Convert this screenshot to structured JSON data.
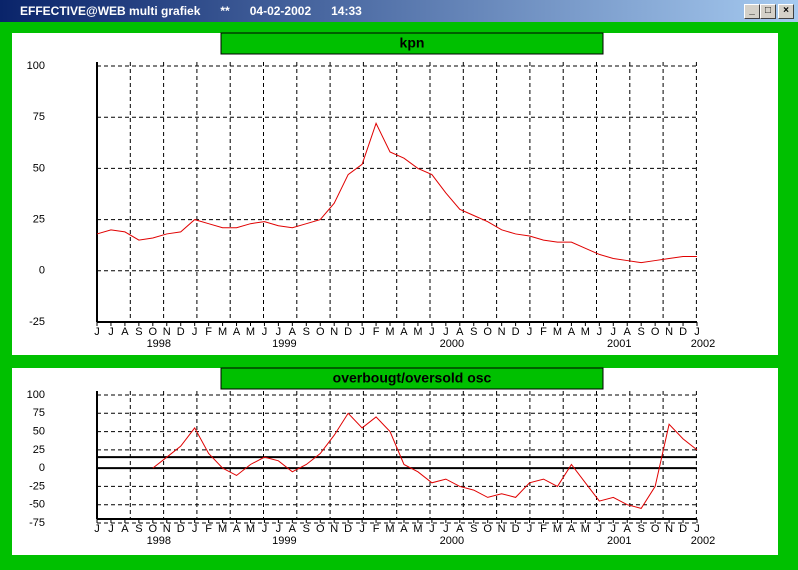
{
  "window": {
    "title": "EFFECTIVE@WEB multi grafiek      **      04-02-2002      14:33"
  },
  "chart_data": [
    {
      "type": "line",
      "title": "kpn",
      "categories": [
        "J",
        "J",
        "A",
        "S",
        "O",
        "N",
        "D",
        "J",
        "F",
        "M",
        "A",
        "M",
        "J",
        "J",
        "A",
        "S",
        "O",
        "N",
        "D",
        "J",
        "F",
        "M",
        "A",
        "M",
        "J",
        "J",
        "A",
        "S",
        "O",
        "N",
        "D",
        "J",
        "F",
        "M",
        "A",
        "M",
        "J",
        "J",
        "A",
        "S",
        "O",
        "N",
        "D",
        "J"
      ],
      "years": [
        null,
        null,
        null,
        null,
        "1998",
        null,
        null,
        null,
        null,
        null,
        null,
        null,
        null,
        "1999",
        null,
        null,
        null,
        null,
        null,
        null,
        null,
        null,
        null,
        null,
        null,
        "2000",
        null,
        null,
        null,
        null,
        null,
        null,
        null,
        null,
        null,
        null,
        null,
        "2001",
        null,
        null,
        null,
        null,
        null,
        "2002"
      ],
      "series": [
        {
          "color": "#e00000",
          "values": [
            18,
            20,
            19,
            15,
            16,
            18,
            19,
            25,
            23,
            21,
            21,
            23,
            24,
            22,
            21,
            23,
            25,
            33,
            47,
            52,
            72,
            58,
            55,
            50,
            47,
            38,
            30,
            27,
            24,
            20,
            18,
            17,
            15,
            14,
            14,
            11,
            8,
            6,
            5,
            4,
            5,
            6,
            7,
            7
          ]
        }
      ],
      "ylim": [
        -25,
        100
      ],
      "yticks": [
        -25,
        0,
        25,
        50,
        75,
        100
      ],
      "grid": true
    },
    {
      "type": "line",
      "title": "overbougt/oversold osc",
      "categories": [
        "J",
        "J",
        "A",
        "S",
        "O",
        "N",
        "D",
        "J",
        "F",
        "M",
        "A",
        "M",
        "J",
        "J",
        "A",
        "S",
        "O",
        "N",
        "D",
        "J",
        "F",
        "M",
        "A",
        "M",
        "J",
        "J",
        "A",
        "S",
        "O",
        "N",
        "D",
        "J",
        "F",
        "M",
        "A",
        "M",
        "J",
        "J",
        "A",
        "S",
        "O",
        "N",
        "D",
        "J"
      ],
      "years": [
        null,
        null,
        null,
        null,
        "1998",
        null,
        null,
        null,
        null,
        null,
        null,
        null,
        null,
        "1999",
        null,
        null,
        null,
        null,
        null,
        null,
        null,
        null,
        null,
        null,
        null,
        "2000",
        null,
        null,
        null,
        null,
        null,
        null,
        null,
        null,
        null,
        null,
        null,
        "2001",
        null,
        null,
        null,
        null,
        null,
        "2002"
      ],
      "series": [
        {
          "color": "#e00000",
          "values": [
            null,
            null,
            null,
            null,
            0,
            15,
            30,
            55,
            20,
            0,
            -10,
            5,
            15,
            10,
            -5,
            5,
            20,
            45,
            75,
            55,
            70,
            50,
            5,
            -5,
            -20,
            -15,
            -25,
            -30,
            -40,
            -35,
            -40,
            -20,
            -15,
            -25,
            5,
            -20,
            -45,
            -40,
            -50,
            -55,
            -25,
            60,
            40,
            25
          ]
        }
      ],
      "reference_lines": [
        15,
        0
      ],
      "ylim": [
        -75,
        100
      ],
      "yticks": [
        -75,
        -50,
        -25,
        0,
        25,
        50,
        75,
        100
      ],
      "grid": true
    }
  ]
}
